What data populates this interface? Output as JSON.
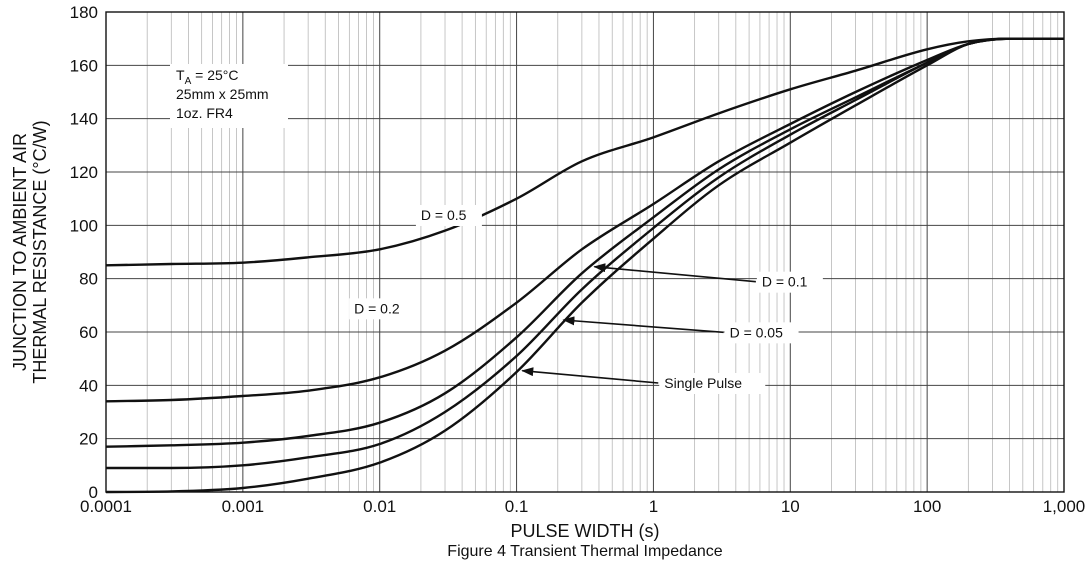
{
  "chart_data": {
    "type": "line",
    "title": "",
    "caption": "Figure 4 Transient Thermal Impedance",
    "xlabel": "PULSE WIDTH (s)",
    "ylabel_lines": [
      "JUNCTION TO AMBIENT AIR",
      "THERMAL RESISTANCE (°C/W)"
    ],
    "x_scale": "log",
    "xlim": [
      0.0001,
      1000
    ],
    "ylim": [
      0,
      180
    ],
    "x_ticks": [
      0.0001,
      0.001,
      0.01,
      0.1,
      1,
      10,
      100,
      1000
    ],
    "x_tick_labels": [
      "0.0001",
      "0.001",
      "0.01",
      "0.1",
      "1",
      "10",
      "100",
      "1,000"
    ],
    "y_ticks": [
      0,
      20,
      40,
      60,
      80,
      100,
      120,
      140,
      160,
      180
    ],
    "y_tick_labels": [
      "0",
      "20",
      "40",
      "60",
      "80",
      "100",
      "120",
      "140",
      "160",
      "180"
    ],
    "grid": true,
    "legend": "none",
    "conditions": {
      "line1_main": "T",
      "line1_sub": "A",
      "line1_rest": " = 25°C",
      "line2": "25mm x 25mm",
      "line3": "1oz. FR4"
    },
    "series": [
      {
        "name": "D = 0.5",
        "x": [
          0.0001,
          0.0003,
          0.001,
          0.003,
          0.01,
          0.03,
          0.1,
          0.3,
          1,
          3,
          10,
          30,
          100,
          200,
          400,
          1000
        ],
        "y": [
          85,
          85.5,
          86,
          88,
          91,
          98,
          110,
          124,
          133,
          142,
          151,
          158,
          166,
          169,
          170,
          170
        ]
      },
      {
        "name": "D = 0.2",
        "x": [
          0.0001,
          0.0003,
          0.001,
          0.003,
          0.01,
          0.03,
          0.1,
          0.3,
          1,
          3,
          10,
          30,
          100,
          200,
          400,
          1000
        ],
        "y": [
          34,
          34.5,
          36,
          38,
          43,
          53,
          71,
          91,
          108,
          124,
          138,
          150,
          162,
          168,
          170,
          170
        ]
      },
      {
        "name": "D = 0.1",
        "x": [
          0.0001,
          0.0003,
          0.001,
          0.003,
          0.01,
          0.03,
          0.1,
          0.3,
          1,
          3,
          10,
          30,
          100,
          200,
          400,
          1000
        ],
        "y": [
          17,
          17.5,
          18.5,
          21,
          26,
          37,
          58,
          82,
          103,
          121,
          136,
          148,
          161,
          168,
          170,
          170
        ]
      },
      {
        "name": "D = 0.05",
        "x": [
          0.0001,
          0.0003,
          0.001,
          0.003,
          0.01,
          0.03,
          0.1,
          0.3,
          1,
          3,
          10,
          30,
          100,
          200,
          400,
          1000
        ],
        "y": [
          9,
          9,
          10,
          13,
          18,
          30,
          51,
          76,
          99,
          118,
          134,
          147,
          161,
          168,
          170,
          170
        ]
      },
      {
        "name": "Single Pulse",
        "x": [
          0.0001,
          0.0003,
          0.001,
          0.003,
          0.01,
          0.03,
          0.1,
          0.3,
          1,
          3,
          10,
          30,
          100,
          200,
          400,
          1000
        ],
        "y": [
          0,
          0.2,
          1.5,
          5,
          11,
          23,
          45,
          71,
          95,
          115,
          131,
          145,
          160,
          168,
          170,
          170
        ]
      }
    ],
    "annotations": [
      {
        "text": "D = 0.5",
        "x": 0.02,
        "y": 102,
        "arrow": false
      },
      {
        "text": "D = 0.2",
        "x": 0.0065,
        "y": 67,
        "arrow": false
      },
      {
        "text": "D = 0.1",
        "x": 6.2,
        "y": 77,
        "arrow_to": [
          0.37,
          84.5
        ]
      },
      {
        "text": "D = 0.05",
        "x": 3.6,
        "y": 58,
        "arrow_to": [
          0.22,
          64.5
        ]
      },
      {
        "text": "Single Pulse",
        "x": 1.2,
        "y": 39,
        "arrow_to": [
          0.11,
          45.5
        ]
      }
    ]
  }
}
